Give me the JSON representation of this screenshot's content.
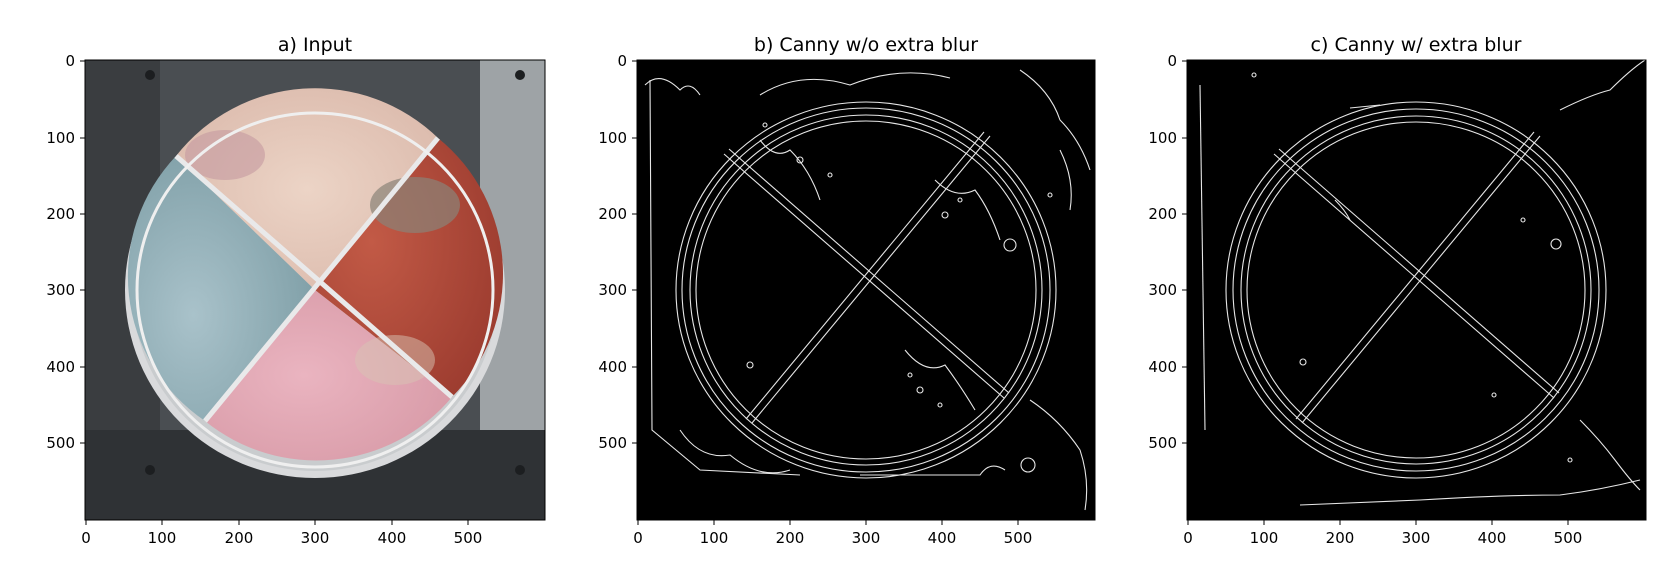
{
  "figure": {
    "panels": [
      {
        "title": "a) Input",
        "x_ticks": [
          "0",
          "100",
          "200",
          "300",
          "400",
          "500"
        ],
        "y_ticks": [
          "0",
          "100",
          "200",
          "300",
          "400",
          "500"
        ]
      },
      {
        "title": "b) Canny w/o extra blur",
        "x_ticks": [
          "0",
          "100",
          "200",
          "300",
          "400",
          "500"
        ],
        "y_ticks": [
          "0",
          "100",
          "200",
          "300",
          "400",
          "500"
        ]
      },
      {
        "title": "c) Canny w/ extra blur",
        "x_ticks": [
          "0",
          "100",
          "200",
          "300",
          "400",
          "500"
        ],
        "y_ticks": [
          "0",
          "100",
          "200",
          "300",
          "400",
          "500"
        ]
      }
    ]
  },
  "colors": {
    "background": "#ffffff",
    "edge_background": "#000000",
    "edge_line": "#e6e6e6",
    "plate_blue": "#9fb8c2",
    "plate_peach": "#e3c5b8",
    "plate_red": "#b5493a",
    "plate_pink": "#e2a9b8",
    "plate_dark": "#2e3134"
  }
}
